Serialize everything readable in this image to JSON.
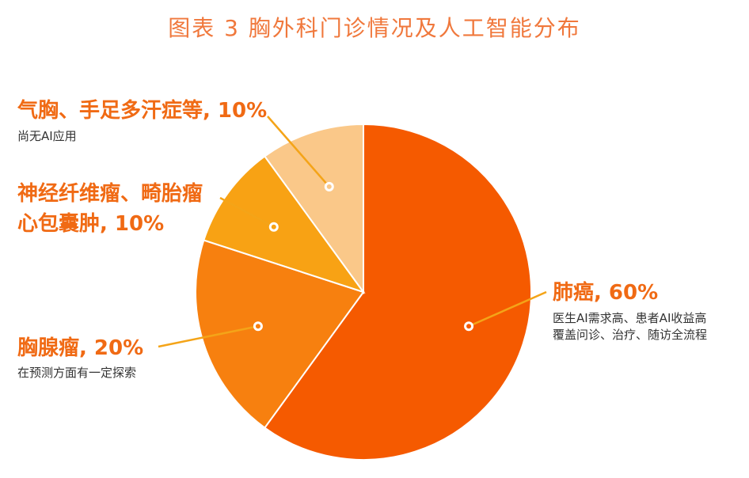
{
  "chart_data": {
    "type": "pie",
    "title": "图表 3 胸外科门诊情况及人工智能分布",
    "slices": [
      {
        "label": "肺癌, 60%",
        "value": 60,
        "color": "#f55a00",
        "note_lines": [
          "医生AI需求高、患者AI收益高",
          "覆盖问诊、治疗、随访全流程"
        ]
      },
      {
        "label": "胸腺瘤, 20%",
        "value": 20,
        "color": "#f7800f",
        "note_lines": [
          "在预测方面有一定探索"
        ]
      },
      {
        "label_lines": [
          "神经纤维瘤、畸胎瘤",
          "心包囊肿, 10%"
        ],
        "value": 10,
        "color": "#f8a214",
        "note_lines": []
      },
      {
        "label": "气胸、手足多汗症等, 10%",
        "value": 10,
        "color": "#fac889",
        "note_lines": [
          "尚无AI应用"
        ]
      }
    ]
  }
}
